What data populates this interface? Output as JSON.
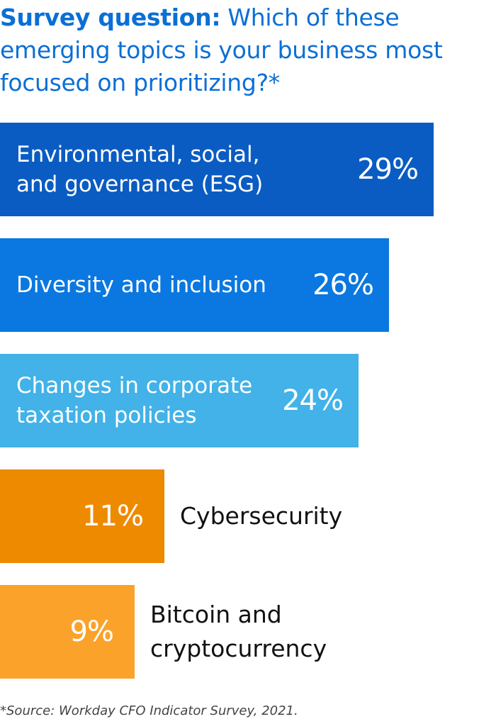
{
  "title": {
    "lead": "Survey question:",
    "question": "Which of these emerging topics is your business most focused on prioritizing?*"
  },
  "chart_data": {
    "type": "bar",
    "orientation": "horizontal",
    "categories": [
      "Environmental, social, and governance (ESG)",
      "Diversity and inclusion",
      "Changes in corporate taxation policies",
      "Cybersecurity",
      "Bitcoin and cryptocurrency"
    ],
    "values": [
      29,
      26,
      24,
      11,
      9
    ],
    "value_labels": [
      "29%",
      "26%",
      "24%",
      "11%",
      "9%"
    ],
    "colors": [
      "#0a5cc2",
      "#0a78e0",
      "#42b2e8",
      "#ee8a00",
      "#fba22b"
    ],
    "unit": "%"
  },
  "source": "*Source: Workday CFO Indicator Survey, 2021."
}
